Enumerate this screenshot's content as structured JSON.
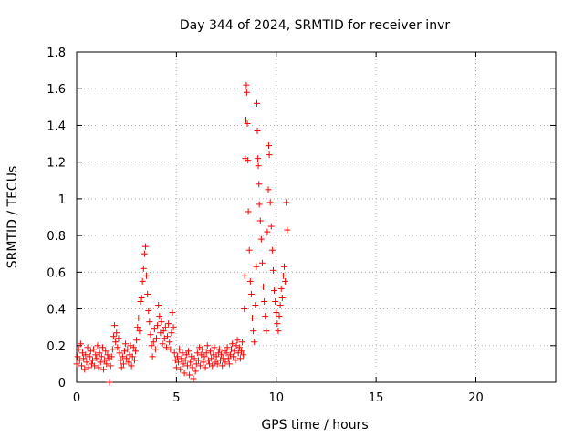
{
  "chart_data": {
    "type": "scatter",
    "title": "Day 344 of 2024, SRMTID for receiver invr",
    "xlabel": "GPS time / hours",
    "ylabel": "SRMTID / TECUs",
    "xlim": [
      0,
      24
    ],
    "ylim": [
      0,
      1.8
    ],
    "xticks": [
      0,
      5,
      10,
      15,
      20
    ],
    "xtick_labels": [
      "0",
      "5",
      "10",
      "15",
      "20"
    ],
    "yticks": [
      0,
      0.2,
      0.4,
      0.6,
      0.8,
      1,
      1.2,
      1.4,
      1.6,
      1.8
    ],
    "ytick_labels": [
      "0",
      "0.2",
      "0.4",
      "0.6",
      "0.8",
      "1",
      "1.2",
      "1.4",
      "1.6",
      "1.8"
    ],
    "grid": true,
    "marker": "+",
    "marker_color": "#ff0000",
    "series": [
      {
        "name": "SRMTID",
        "points": [
          [
            0.0,
            0.1
          ],
          [
            0.05,
            0.14
          ],
          [
            0.1,
            0.18
          ],
          [
            0.15,
            0.12
          ],
          [
            0.2,
            0.21
          ],
          [
            0.25,
            0.09
          ],
          [
            0.3,
            0.16
          ],
          [
            0.35,
            0.13
          ],
          [
            0.4,
            0.07
          ],
          [
            0.45,
            0.15
          ],
          [
            0.5,
            0.11
          ],
          [
            0.55,
            0.19
          ],
          [
            0.6,
            0.08
          ],
          [
            0.65,
            0.14
          ],
          [
            0.7,
            0.17
          ],
          [
            0.75,
            0.1
          ],
          [
            0.8,
            0.12
          ],
          [
            0.85,
            0.18
          ],
          [
            0.9,
            0.09
          ],
          [
            0.95,
            0.15
          ],
          [
            1.0,
            0.13
          ],
          [
            1.05,
            0.2
          ],
          [
            1.1,
            0.08
          ],
          [
            1.15,
            0.16
          ],
          [
            1.2,
            0.11
          ],
          [
            1.25,
            0.14
          ],
          [
            1.3,
            0.19
          ],
          [
            1.35,
            0.07
          ],
          [
            1.4,
            0.12
          ],
          [
            1.45,
            0.17
          ],
          [
            1.5,
            0.1
          ],
          [
            1.55,
            0.15
          ],
          [
            1.6,
            0.13
          ],
          [
            1.65,
            0.0
          ],
          [
            1.7,
            0.09
          ],
          [
            1.75,
            0.14
          ],
          [
            1.8,
            0.18
          ],
          [
            1.85,
            0.25
          ],
          [
            1.9,
            0.31
          ],
          [
            1.95,
            0.22
          ],
          [
            2.0,
            0.27
          ],
          [
            2.05,
            0.19
          ],
          [
            2.1,
            0.24
          ],
          [
            2.15,
            0.16
          ],
          [
            2.2,
            0.12
          ],
          [
            2.25,
            0.08
          ],
          [
            2.3,
            0.14
          ],
          [
            2.35,
            0.1
          ],
          [
            2.4,
            0.17
          ],
          [
            2.45,
            0.21
          ],
          [
            2.5,
            0.13
          ],
          [
            2.55,
            0.18
          ],
          [
            2.6,
            0.11
          ],
          [
            2.65,
            0.15
          ],
          [
            2.7,
            0.2
          ],
          [
            2.75,
            0.09
          ],
          [
            2.8,
            0.14
          ],
          [
            2.85,
            0.19
          ],
          [
            2.9,
            0.12
          ],
          [
            2.95,
            0.17
          ],
          [
            3.0,
            0.23
          ],
          [
            3.05,
            0.3
          ],
          [
            3.1,
            0.35
          ],
          [
            3.15,
            0.28
          ],
          [
            3.2,
            0.44
          ],
          [
            3.25,
            0.46
          ],
          [
            3.3,
            0.55
          ],
          [
            3.35,
            0.62
          ],
          [
            3.4,
            0.7
          ],
          [
            3.45,
            0.74
          ],
          [
            3.5,
            0.58
          ],
          [
            3.55,
            0.48
          ],
          [
            3.6,
            0.39
          ],
          [
            3.65,
            0.33
          ],
          [
            3.7,
            0.26
          ],
          [
            3.75,
            0.2
          ],
          [
            3.8,
            0.14
          ],
          [
            3.85,
            0.22
          ],
          [
            3.9,
            0.29
          ],
          [
            3.95,
            0.18
          ],
          [
            4.0,
            0.24
          ],
          [
            4.05,
            0.31
          ],
          [
            4.1,
            0.42
          ],
          [
            4.15,
            0.36
          ],
          [
            4.2,
            0.27
          ],
          [
            4.25,
            0.33
          ],
          [
            4.3,
            0.21
          ],
          [
            4.35,
            0.28
          ],
          [
            4.4,
            0.24
          ],
          [
            4.45,
            0.3
          ],
          [
            4.5,
            0.19
          ],
          [
            4.55,
            0.25
          ],
          [
            4.6,
            0.32
          ],
          [
            4.65,
            0.22
          ],
          [
            4.7,
            0.18
          ],
          [
            4.75,
            0.27
          ],
          [
            4.8,
            0.38
          ],
          [
            4.85,
            0.3
          ],
          [
            4.9,
            0.16
          ],
          [
            4.95,
            0.12
          ],
          [
            5.0,
            0.08
          ],
          [
            5.05,
            0.14
          ],
          [
            5.1,
            0.11
          ],
          [
            5.15,
            0.18
          ],
          [
            5.2,
            0.07
          ],
          [
            5.25,
            0.13
          ],
          [
            5.3,
            0.16
          ],
          [
            5.35,
            0.1
          ],
          [
            5.4,
            0.05
          ],
          [
            5.45,
            0.12
          ],
          [
            5.5,
            0.15
          ],
          [
            5.55,
            0.09
          ],
          [
            5.6,
            0.17
          ],
          [
            5.65,
            0.04
          ],
          [
            5.7,
            0.11
          ],
          [
            5.75,
            0.14
          ],
          [
            5.8,
            0.08
          ],
          [
            5.85,
            0.02
          ],
          [
            5.9,
            0.13
          ],
          [
            5.95,
            0.06
          ],
          [
            6.0,
            0.1
          ],
          [
            6.05,
            0.16
          ],
          [
            6.1,
            0.12
          ],
          [
            6.15,
            0.19
          ],
          [
            6.2,
            0.09
          ],
          [
            6.25,
            0.15
          ],
          [
            6.3,
            0.18
          ],
          [
            6.35,
            0.11
          ],
          [
            6.4,
            0.14
          ],
          [
            6.45,
            0.08
          ],
          [
            6.5,
            0.16
          ],
          [
            6.55,
            0.2
          ],
          [
            6.6,
            0.12
          ],
          [
            6.65,
            0.1
          ],
          [
            6.7,
            0.17
          ],
          [
            6.75,
            0.13
          ],
          [
            6.8,
            0.09
          ],
          [
            6.85,
            0.15
          ],
          [
            6.9,
            0.19
          ],
          [
            6.95,
            0.11
          ],
          [
            7.0,
            0.14
          ],
          [
            7.05,
            0.1
          ],
          [
            7.1,
            0.16
          ],
          [
            7.15,
            0.18
          ],
          [
            7.2,
            0.12
          ],
          [
            7.25,
            0.15
          ],
          [
            7.3,
            0.09
          ],
          [
            7.35,
            0.13
          ],
          [
            7.4,
            0.17
          ],
          [
            7.45,
            0.11
          ],
          [
            7.5,
            0.16
          ],
          [
            7.55,
            0.19
          ],
          [
            7.6,
            0.13
          ],
          [
            7.65,
            0.1
          ],
          [
            7.7,
            0.15
          ],
          [
            7.75,
            0.18
          ],
          [
            7.8,
            0.21
          ],
          [
            7.85,
            0.14
          ],
          [
            7.9,
            0.17
          ],
          [
            7.95,
            0.12
          ],
          [
            8.0,
            0.2
          ],
          [
            8.05,
            0.23
          ],
          [
            8.1,
            0.16
          ],
          [
            8.15,
            0.19
          ],
          [
            8.2,
            0.13
          ],
          [
            8.25,
            0.17
          ],
          [
            8.3,
            0.22
          ],
          [
            8.35,
            0.15
          ],
          [
            8.4,
            0.4
          ],
          [
            8.42,
            0.58
          ],
          [
            8.45,
            1.22
          ],
          [
            8.48,
            1.43
          ],
          [
            8.5,
            1.62
          ],
          [
            8.52,
            1.58
          ],
          [
            8.55,
            1.41
          ],
          [
            8.58,
            1.21
          ],
          [
            8.6,
            0.93
          ],
          [
            8.65,
            0.72
          ],
          [
            8.7,
            0.55
          ],
          [
            8.75,
            0.48
          ],
          [
            8.8,
            0.35
          ],
          [
            8.85,
            0.28
          ],
          [
            8.9,
            0.22
          ],
          [
            8.95,
            0.42
          ],
          [
            9.0,
            0.63
          ],
          [
            9.03,
            1.52
          ],
          [
            9.05,
            1.37
          ],
          [
            9.08,
            1.22
          ],
          [
            9.1,
            1.18
          ],
          [
            9.13,
            1.08
          ],
          [
            9.15,
            0.97
          ],
          [
            9.2,
            0.88
          ],
          [
            9.25,
            0.78
          ],
          [
            9.3,
            0.65
          ],
          [
            9.35,
            0.52
          ],
          [
            9.4,
            0.44
          ],
          [
            9.45,
            0.36
          ],
          [
            9.5,
            0.28
          ],
          [
            9.55,
            0.82
          ],
          [
            9.6,
            1.05
          ],
          [
            9.62,
            1.29
          ],
          [
            9.65,
            1.24
          ],
          [
            9.7,
            0.98
          ],
          [
            9.75,
            0.85
          ],
          [
            9.8,
            0.72
          ],
          [
            9.85,
            0.61
          ],
          [
            9.9,
            0.5
          ],
          [
            9.95,
            0.44
          ],
          [
            10.0,
            0.38
          ],
          [
            10.05,
            0.32
          ],
          [
            10.1,
            0.28
          ],
          [
            10.15,
            0.36
          ],
          [
            10.2,
            0.42
          ],
          [
            10.25,
            0.51
          ],
          [
            10.3,
            0.46
          ],
          [
            10.35,
            0.58
          ],
          [
            10.4,
            0.63
          ],
          [
            10.45,
            0.55
          ],
          [
            10.5,
            0.98
          ],
          [
            10.55,
            0.83
          ]
        ]
      }
    ]
  }
}
